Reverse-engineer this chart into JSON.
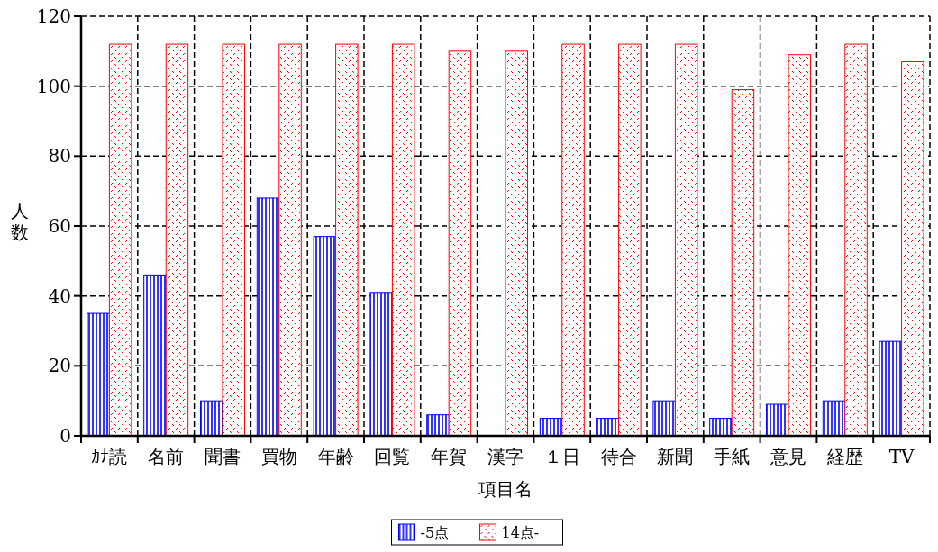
{
  "chart_data": {
    "type": "bar",
    "xlabel": "項目名",
    "ylabel": "人数",
    "categories": [
      "ｶﾅ読",
      "名前",
      "聞書",
      "買物",
      "年齢",
      "回覧",
      "年賀",
      "漢字",
      "１日",
      "待合",
      "新聞",
      "手紙",
      "意見",
      "経歴",
      "TV"
    ],
    "series": [
      {
        "name": "-5点",
        "color": "#0000ff",
        "values": [
          35,
          46,
          10,
          68,
          57,
          41,
          6,
          0,
          5,
          5,
          10,
          5,
          9,
          10,
          27
        ]
      },
      {
        "name": "14点-",
        "color": "#ff0000",
        "values": [
          112,
          112,
          112,
          112,
          112,
          112,
          110,
          110,
          112,
          112,
          112,
          99,
          109,
          112,
          107
        ]
      }
    ],
    "ylim": [
      0,
      120
    ],
    "yticks": [
      0,
      20,
      40,
      60,
      80,
      100,
      120
    ],
    "grid": true,
    "legend": "bottom"
  }
}
